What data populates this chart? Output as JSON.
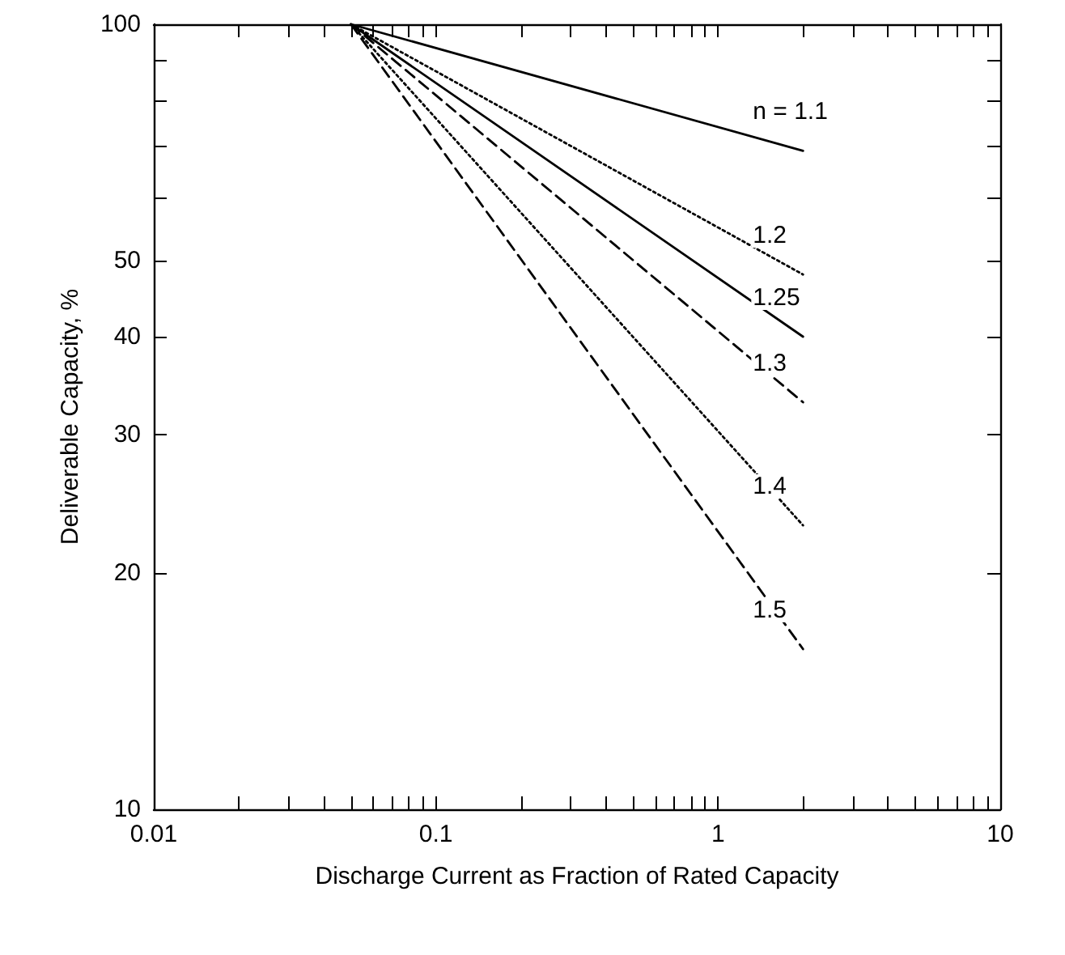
{
  "chart_data": {
    "type": "line",
    "xlabel": "Discharge Current as Fraction of Rated Capacity",
    "ylabel": "Deliverable Capacity, %",
    "log": "xy",
    "grid": false,
    "legend": false,
    "marker": "none",
    "xlim": [
      0.01,
      10
    ],
    "ylim": [
      10,
      100
    ],
    "xticks": [
      0.01,
      {
        "value": 0.02,
        "label": null
      },
      {
        "value": 0.03,
        "label": null
      },
      {
        "value": 0.04,
        "label": null
      },
      {
        "value": 0.05,
        "label": null
      },
      {
        "value": 0.06,
        "label": null
      },
      {
        "value": 0.07,
        "label": null
      },
      {
        "value": 0.08,
        "label": null
      },
      {
        "value": 0.09,
        "label": null
      },
      0.1,
      {
        "value": 0.2,
        "label": null
      },
      {
        "value": 0.3,
        "label": null
      },
      {
        "value": 0.4,
        "label": null
      },
      {
        "value": 0.5,
        "label": null
      },
      {
        "value": 0.6,
        "label": null
      },
      {
        "value": 0.7,
        "label": null
      },
      {
        "value": 0.8,
        "label": null
      },
      {
        "value": 0.9,
        "label": null
      },
      1,
      {
        "value": 2,
        "label": null
      },
      {
        "value": 3,
        "label": null
      },
      {
        "value": 4,
        "label": null
      },
      {
        "value": 5,
        "label": null
      },
      {
        "value": 6,
        "label": null
      },
      {
        "value": 7,
        "label": null
      },
      {
        "value": 8,
        "label": null
      },
      {
        "value": 9,
        "label": null
      },
      10
    ],
    "yticks": [
      10,
      20,
      30,
      40,
      50,
      {
        "value": 60,
        "label": null
      },
      {
        "value": 70,
        "label": null
      },
      {
        "value": 80,
        "label": null
      },
      {
        "value": 90,
        "label": null
      },
      100
    ],
    "x": [
      0.05,
      2
    ],
    "series": [
      {
        "name": "n = 1.1",
        "color": "#000000",
        "line_style": "solid",
        "values": [
          100,
          69
        ]
      },
      {
        "name": "1.2",
        "color": "#000000",
        "line_style": "dotted",
        "values": [
          100,
          48
        ]
      },
      {
        "name": "1.25",
        "color": "#000000",
        "line_style": "solid",
        "values": [
          100,
          40
        ]
      },
      {
        "name": "1.3",
        "color": "#000000",
        "line_style": "dashed",
        "values": [
          100,
          33
        ]
      },
      {
        "name": "1.4",
        "color": "#000000",
        "line_style": "dotted",
        "values": [
          100,
          23
        ]
      },
      {
        "name": "1.5",
        "color": "#000000",
        "line_style": "dashed",
        "values": [
          100,
          16
        ]
      }
    ]
  }
}
